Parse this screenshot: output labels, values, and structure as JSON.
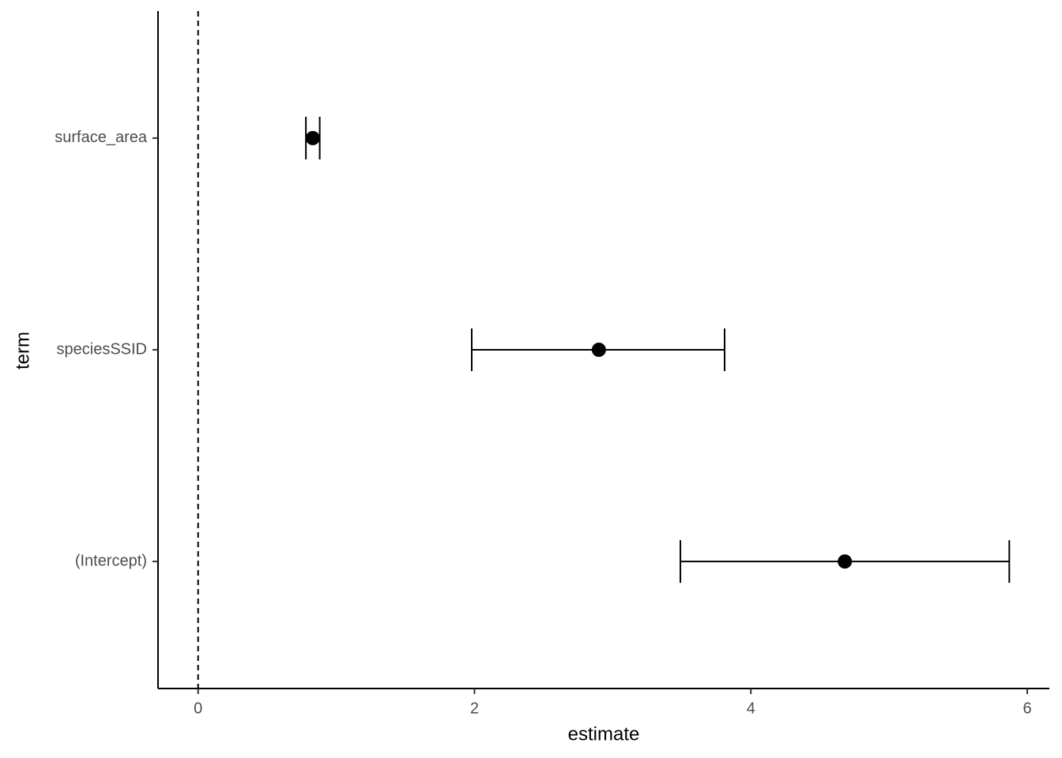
{
  "chart_data": {
    "type": "coefplot",
    "x_label": "estimate",
    "y_label": "term",
    "categories": [
      "(Intercept)",
      "speciesSSID",
      "surface_area"
    ],
    "series": [
      {
        "color": "#000000",
        "values": [
          4.68,
          2.9,
          0.83
        ],
        "lower": [
          3.49,
          1.98,
          0.78
        ],
        "upper": [
          5.87,
          3.81,
          0.88
        ]
      }
    ],
    "xlim": [
      -0.29,
      6.16
    ],
    "xticks": [
      0,
      2,
      4,
      6
    ],
    "reference_line": 0
  }
}
